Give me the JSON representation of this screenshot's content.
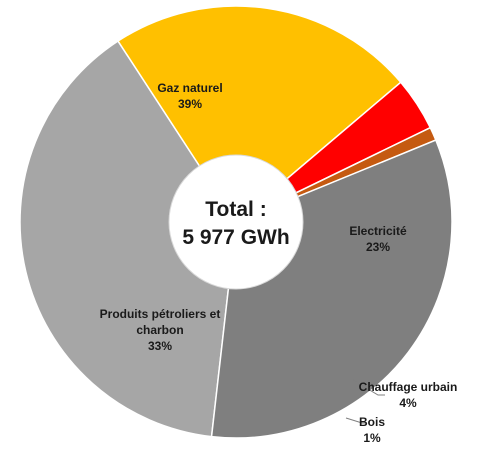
{
  "chart_data": {
    "type": "pie",
    "donut": true,
    "center_label": {
      "line1": "Total :",
      "line2": "5 977 GWh"
    },
    "slices": [
      {
        "label": "Gaz naturel",
        "label_lines": [
          "Gaz naturel"
        ],
        "value": 39,
        "display": "39%",
        "color": "#a6a6a6"
      },
      {
        "label": "Electricité",
        "label_lines": [
          "Electricité"
        ],
        "value": 23,
        "display": "23%",
        "color": "#ffc000"
      },
      {
        "label": "Chauffage urbain",
        "label_lines": [
          "Chauffage urbain"
        ],
        "value": 4,
        "display": "4%",
        "color": "#ff0000"
      },
      {
        "label": "Bois",
        "label_lines": [
          "Bois"
        ],
        "value": 1,
        "display": "1%",
        "color": "#c55a11"
      },
      {
        "label": "Produits pétroliers et charbon",
        "label_lines": [
          "Produits pétroliers et",
          "charbon"
        ],
        "value": 33,
        "display": "33%",
        "color": "#7f7f7f"
      }
    ]
  }
}
